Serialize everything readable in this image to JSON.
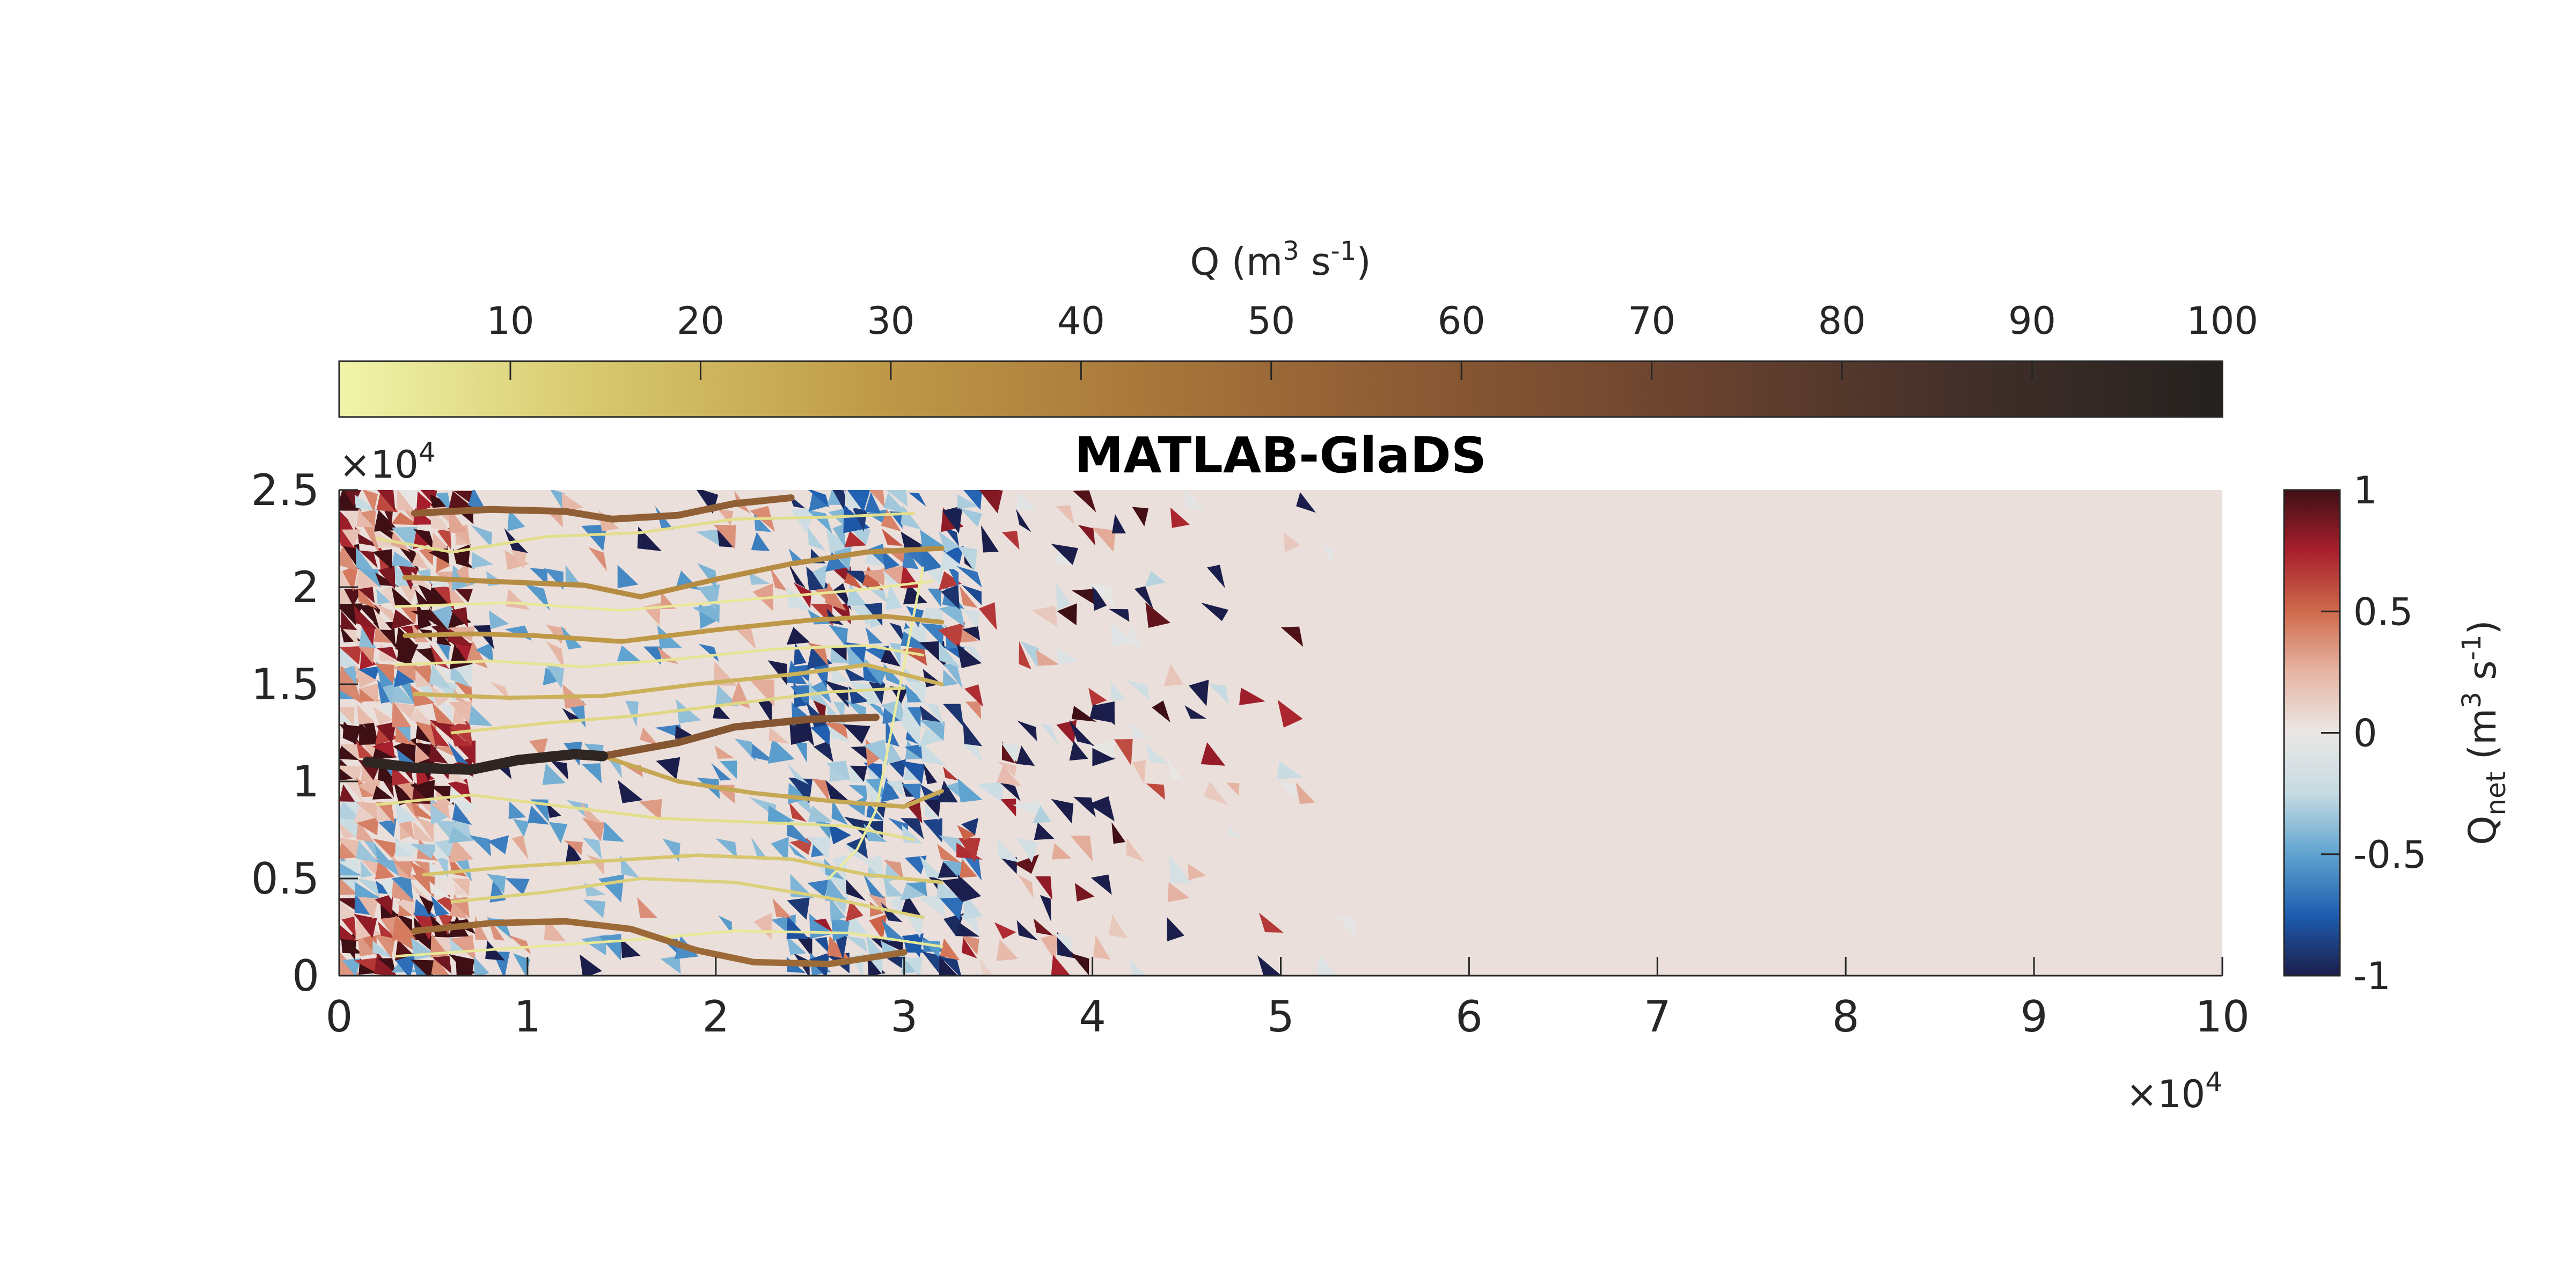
{
  "chart_data": {
    "type": "heatmap",
    "title": "MATLAB-GlaDS",
    "x_axis": {
      "ticks": [
        0,
        1,
        2,
        3,
        4,
        5,
        6,
        7,
        8,
        9,
        10
      ],
      "multiplier": "×10",
      "multiplier_exp": "4",
      "range": [
        0,
        100000
      ]
    },
    "y_axis": {
      "ticks": [
        0,
        0.5,
        1,
        1.5,
        2,
        2.5
      ],
      "multiplier": "×10",
      "multiplier_exp": "4",
      "range": [
        0,
        25000
      ]
    },
    "channel_colorbar": {
      "label_pre": "Q (m",
      "label_sup1": "3",
      "label_mid": " s",
      "label_sup2": "-1",
      "label_post": ")",
      "ticks": [
        "10",
        "20",
        "30",
        "40",
        "50",
        "60",
        "70",
        "80",
        "90",
        "100"
      ],
      "range": [
        1,
        100
      ],
      "colors": [
        "#f0f5aa",
        "#d6c66b",
        "#bf9a48",
        "#a9773a",
        "#8c5a34",
        "#6b432f",
        "#44302a",
        "#24211f"
      ]
    },
    "qnet_colorbar": {
      "label_main": "Q",
      "label_sub": "net",
      "label_mid": " (m",
      "label_sup1": "3",
      "label_s": " s",
      "label_sup2": "-1",
      "label_post": ")",
      "ticks": [
        "-1",
        "-0.5",
        "0",
        "0.5",
        "1"
      ],
      "range": [
        -1,
        1
      ],
      "colors": [
        "#1b1e4b",
        "#1e5db0",
        "#5fa3cf",
        "#c5dbe2",
        "#ebe7e5",
        "#e6b5a4",
        "#cf6a4c",
        "#a81f2d",
        "#3e0f14"
      ]
    },
    "background_value": 0.04,
    "channels": [
      {
        "q": 95,
        "points": [
          [
            1500,
            11000
          ],
          [
            4000,
            10700
          ],
          [
            7000,
            10600
          ],
          [
            9500,
            11100
          ],
          [
            12500,
            11400
          ],
          [
            14000,
            11300
          ]
        ]
      },
      {
        "q": 60,
        "points": [
          [
            14000,
            11300
          ],
          [
            18000,
            12000
          ],
          [
            21000,
            12800
          ],
          [
            25000,
            13200
          ],
          [
            28500,
            13300
          ]
        ]
      },
      {
        "q": 55,
        "points": [
          [
            4000,
            23800
          ],
          [
            8000,
            24000
          ],
          [
            12000,
            23900
          ],
          [
            14500,
            23500
          ],
          [
            18000,
            23700
          ],
          [
            21000,
            24300
          ],
          [
            24000,
            24600
          ]
        ]
      },
      {
        "q": 50,
        "points": [
          [
            4000,
            2300
          ],
          [
            8000,
            2700
          ],
          [
            12000,
            2800
          ],
          [
            15500,
            2400
          ],
          [
            19000,
            1300
          ],
          [
            22000,
            700
          ],
          [
            26000,
            600
          ],
          [
            30000,
            1200
          ]
        ]
      },
      {
        "q": 35,
        "points": [
          [
            3500,
            20500
          ],
          [
            8000,
            20300
          ],
          [
            13000,
            20100
          ],
          [
            16000,
            19500
          ],
          [
            20000,
            20400
          ],
          [
            24000,
            21200
          ],
          [
            28000,
            21800
          ],
          [
            32000,
            22000
          ]
        ]
      },
      {
        "q": 30,
        "points": [
          [
            3500,
            17500
          ],
          [
            7000,
            17600
          ],
          [
            10500,
            17500
          ],
          [
            15000,
            17200
          ],
          [
            20000,
            17800
          ],
          [
            25000,
            18300
          ],
          [
            29000,
            18500
          ],
          [
            32000,
            18200
          ]
        ]
      },
      {
        "q": 25,
        "points": [
          [
            14000,
            11300
          ],
          [
            18000,
            10000
          ],
          [
            22000,
            9400
          ],
          [
            26000,
            9000
          ],
          [
            30000,
            8700
          ],
          [
            32000,
            9500
          ]
        ]
      },
      {
        "q": 22,
        "points": [
          [
            4000,
            14500
          ],
          [
            9000,
            14300
          ],
          [
            14000,
            14400
          ],
          [
            19000,
            15000
          ],
          [
            24000,
            15500
          ],
          [
            28000,
            16000
          ],
          [
            32000,
            15000
          ]
        ]
      },
      {
        "q": 15,
        "points": [
          [
            4500,
            5200
          ],
          [
            9000,
            5600
          ],
          [
            14000,
            5900
          ],
          [
            19000,
            6200
          ],
          [
            24000,
            6000
          ],
          [
            28000,
            5200
          ],
          [
            32000,
            4800
          ]
        ]
      },
      {
        "q": 12,
        "points": [
          [
            6000,
            3800
          ],
          [
            11000,
            4300
          ],
          [
            16000,
            5000
          ],
          [
            21000,
            4800
          ],
          [
            26000,
            4000
          ],
          [
            31000,
            3000
          ]
        ]
      },
      {
        "q": 10,
        "points": [
          [
            6000,
            12500
          ],
          [
            11000,
            13000
          ],
          [
            16000,
            13400
          ],
          [
            21000,
            14000
          ],
          [
            26000,
            14600
          ],
          [
            30000,
            14800
          ]
        ]
      },
      {
        "q": 8,
        "points": [
          [
            2000,
            22500
          ],
          [
            6000,
            21800
          ],
          [
            11000,
            22600
          ],
          [
            16000,
            22800
          ],
          [
            21000,
            23500
          ],
          [
            26000,
            23600
          ],
          [
            30500,
            23800
          ]
        ]
      },
      {
        "q": 8,
        "points": [
          [
            2000,
            8800
          ],
          [
            7000,
            9300
          ],
          [
            12000,
            8700
          ],
          [
            17000,
            8100
          ],
          [
            22000,
            7900
          ],
          [
            27000,
            7700
          ],
          [
            30500,
            7000
          ]
        ]
      },
      {
        "q": 6,
        "points": [
          [
            3000,
            16000
          ],
          [
            8000,
            16200
          ],
          [
            13000,
            15900
          ],
          [
            18000,
            16300
          ],
          [
            23000,
            16800
          ],
          [
            28000,
            17000
          ],
          [
            31000,
            16500
          ]
        ]
      },
      {
        "q": 5,
        "points": [
          [
            3000,
            1000
          ],
          [
            9000,
            1400
          ],
          [
            15000,
            1800
          ],
          [
            21000,
            2300
          ],
          [
            27000,
            2200
          ],
          [
            32000,
            1500
          ]
        ]
      },
      {
        "q": 5,
        "points": [
          [
            3000,
            19000
          ],
          [
            9000,
            19200
          ],
          [
            15000,
            18800
          ],
          [
            21000,
            19300
          ],
          [
            27000,
            19800
          ],
          [
            31500,
            20300
          ]
        ]
      },
      {
        "q": 4,
        "points": [
          [
            26000,
            5000
          ],
          [
            27500,
            6500
          ],
          [
            28500,
            8500
          ],
          [
            29000,
            11000
          ],
          [
            29500,
            13500
          ],
          [
            30000,
            16000
          ],
          [
            30500,
            18500
          ],
          [
            31000,
            21000
          ]
        ]
      }
    ]
  }
}
